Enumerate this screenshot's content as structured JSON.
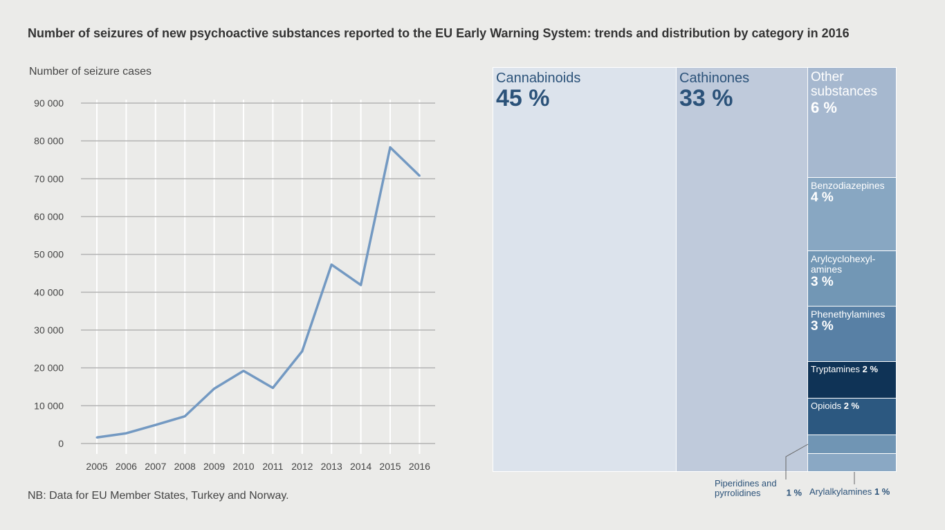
{
  "title": "Number of seizures of new psychoactive substances reported to the EU Early Warning System: trends and distribution by category in 2016",
  "note": "NB: Data for EU Member States, Turkey and Norway.",
  "chart_data": [
    {
      "type": "line",
      "ylabel": "Number of seizure cases",
      "ylim": [
        0,
        90000
      ],
      "yticks": [
        0,
        10000,
        20000,
        30000,
        40000,
        50000,
        60000,
        70000,
        80000,
        90000
      ],
      "ytick_labels": [
        "0",
        "10 000",
        "20 000",
        "30 000",
        "40 000",
        "50 000",
        "60 000",
        "70 000",
        "80 000",
        "90 000"
      ],
      "categories": [
        "2005",
        "2006",
        "2007",
        "2008",
        "2009",
        "2010",
        "2011",
        "2012",
        "2013",
        "2014",
        "2015",
        "2016"
      ],
      "values": [
        1600,
        2700,
        4900,
        7200,
        14500,
        19200,
        14700,
        24400,
        47300,
        41900,
        78300,
        70800
      ],
      "grid": true,
      "color": "#7399c2"
    },
    {
      "type": "treemap",
      "items": [
        {
          "name": "Cannabinoids",
          "value": "45 %",
          "color": "#dce3ec"
        },
        {
          "name": "Cathinones",
          "value": "33 %",
          "color": "#bfcadb"
        },
        {
          "name": "Other substances",
          "value": "6 %",
          "color": "#a6b8cf"
        },
        {
          "name": "Benzodiazepines",
          "value": "4 %",
          "color": "#88a7c2"
        },
        {
          "name": "Arylcyclohexyl-amines",
          "value": "3 %",
          "color": "#7297b5"
        },
        {
          "name": "Phenethylamines",
          "value": "3 %",
          "color": "#5880a5"
        },
        {
          "name": "Tryptamines",
          "value": "2 %",
          "color": "#0f3356"
        },
        {
          "name": "Opioids",
          "value": "2 %",
          "color": "#2c5880"
        },
        {
          "name": "Piperidines and pyrrolidines",
          "value": "1 %",
          "color": "#7095b4"
        },
        {
          "name": "Arylalkylamines",
          "value": "1 %",
          "color": "#8aa8c4"
        }
      ]
    }
  ]
}
